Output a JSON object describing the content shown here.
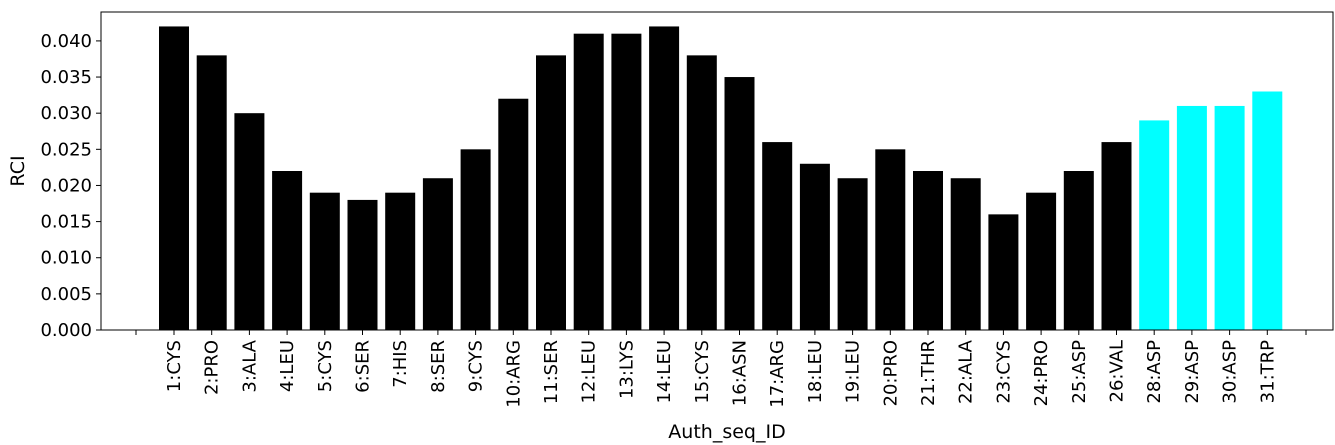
{
  "chart_data": {
    "type": "bar",
    "xlabel": "Auth_seq_ID",
    "ylabel": "RCI",
    "ylim": [
      0,
      0.044
    ],
    "yticks": [
      "0.000",
      "0.005",
      "0.010",
      "0.015",
      "0.020",
      "0.025",
      "0.030",
      "0.035",
      "0.040"
    ],
    "categories": [
      "1:CYS",
      "2:PRO",
      "3:ALA",
      "4:LEU",
      "5:CYS",
      "6:SER",
      "7:HIS",
      "8:SER",
      "9:CYS",
      "10:ARG",
      "11:SER",
      "12:LEU",
      "13:LYS",
      "14:LEU",
      "15:CYS",
      "16:ASN",
      "17:ARG",
      "18:LEU",
      "19:LEU",
      "20:PRO",
      "21:THR",
      "22:ALA",
      "23:CYS",
      "24:PRO",
      "25:ASP",
      "26:VAL",
      "28:ASP",
      "29:ASP",
      "30:ASP",
      "31:TRP"
    ],
    "values": [
      0.042,
      0.038,
      0.03,
      0.022,
      0.019,
      0.018,
      0.019,
      0.021,
      0.025,
      0.032,
      0.038,
      0.041,
      0.041,
      0.042,
      0.038,
      0.035,
      0.026,
      0.023,
      0.021,
      0.025,
      0.022,
      0.021,
      0.016,
      0.019,
      0.022,
      0.026,
      0.029,
      0.031,
      0.031,
      0.033
    ],
    "colors": [
      "#000000",
      "#000000",
      "#000000",
      "#000000",
      "#000000",
      "#000000",
      "#000000",
      "#000000",
      "#000000",
      "#000000",
      "#000000",
      "#000000",
      "#000000",
      "#000000",
      "#000000",
      "#000000",
      "#000000",
      "#000000",
      "#000000",
      "#000000",
      "#000000",
      "#000000",
      "#000000",
      "#000000",
      "#000000",
      "#000000",
      "#00ffff",
      "#00ffff",
      "#00ffff",
      "#00ffff"
    ],
    "grid": false
  }
}
